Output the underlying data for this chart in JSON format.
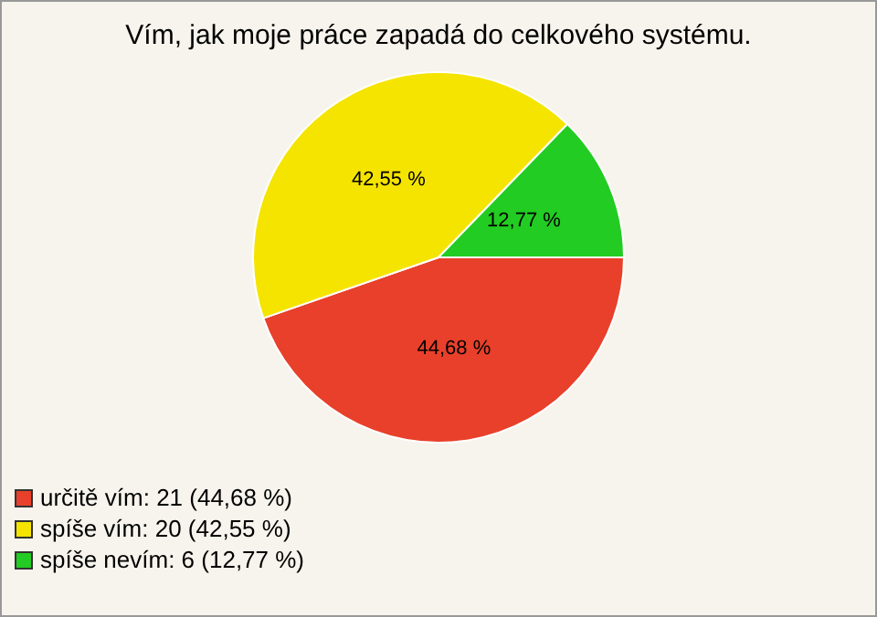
{
  "chart_data": {
    "type": "pie",
    "title": "Vím, jak moje práce zapadá do celkového systému.",
    "categories": [
      "určitě vím: 21 (44,68 %)",
      "spíše vím: 20 (42,55 %)",
      "spíše nevím: 6 (12,77 %)"
    ],
    "values": [
      44.68,
      42.55,
      12.77
    ],
    "value_labels": [
      "44,68 %",
      "42,55 %",
      "12,77 %"
    ],
    "colors": [
      "#e8402a",
      "#f5e400",
      "#22cc22"
    ],
    "legend": "bottom left"
  }
}
